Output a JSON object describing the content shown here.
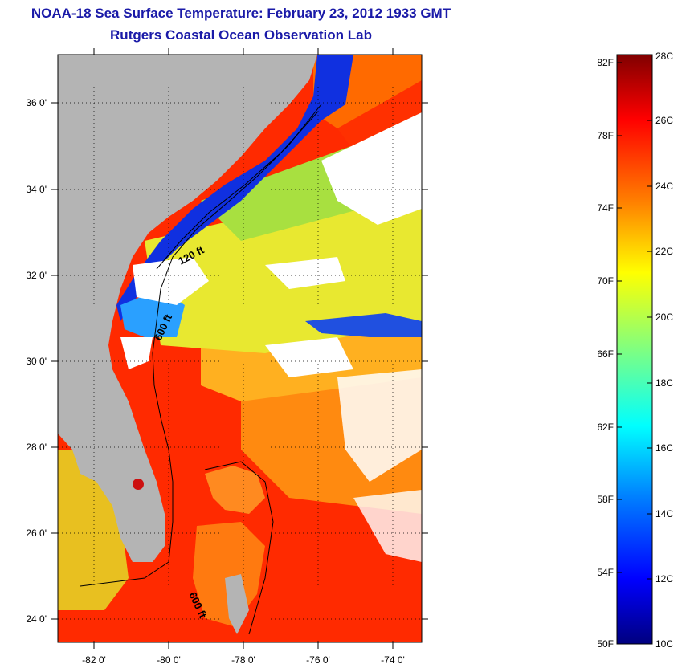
{
  "header": {
    "title": "NOAA-18 Sea Surface Temperature:  February 23, 2012 1933 GMT",
    "subtitle": "Rutgers Coastal Ocean Observation Lab"
  },
  "map": {
    "lat_labels": [
      "36 0'",
      "34 0'",
      "32 0'",
      "30 0'",
      "28 0'",
      "26 0'",
      "24 0'"
    ],
    "lon_labels": [
      "-82 0'",
      "-80 0'",
      "-78 0'",
      "-76 0'",
      "-74 0'"
    ],
    "lat_values": [
      36,
      34,
      32,
      30,
      28,
      26,
      24
    ],
    "lon_values": [
      -82,
      -80,
      -78,
      -76,
      -74
    ],
    "lat_range": [
      23,
      37.1
    ],
    "lon_range": [
      -83,
      -73.3
    ],
    "isobath_labels": [
      "120 ft",
      "600 ft",
      "600 ft"
    ],
    "land_color": "#b4b4b4",
    "cloud_color": "#ffffff"
  },
  "colorbar": {
    "f_labels": [
      "82F",
      "78F",
      "74F",
      "70F",
      "66F",
      "62F",
      "58F",
      "54F",
      "50F"
    ],
    "c_labels": [
      "28C",
      "26C",
      "24C",
      "22C",
      "20C",
      "18C",
      "16C",
      "14C",
      "12C",
      "10C"
    ],
    "c_range": [
      10,
      28
    ],
    "colors": [
      "#00007f",
      "#0000ff",
      "#0080ff",
      "#00ffff",
      "#80ff80",
      "#ffff00",
      "#ff8000",
      "#ff0000",
      "#800000"
    ]
  }
}
